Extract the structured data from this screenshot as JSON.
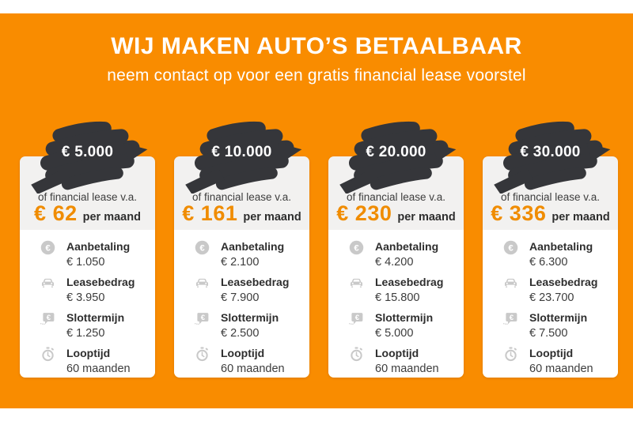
{
  "page": {
    "background_color": "#ffffff",
    "banner_color": "#f98c00",
    "brush_color": "#35363a",
    "accent_price_color": "#f08c00",
    "card_header_color": "#f2f1f0"
  },
  "header": {
    "title_regular": "WIJ MAKEN AUTO’S ",
    "title_bold": "BETAALBAAR",
    "subtitle": "neem contact op voor een gratis financial lease voorstel"
  },
  "labels": {
    "lease_intro": "of financial lease v.a.",
    "per_month": "per maand"
  },
  "cards": [
    {
      "amount": "€ 5.000",
      "monthly": "€ 62",
      "details": [
        {
          "icon": "euro-coin-icon",
          "label": "Aanbetaling",
          "value": "€ 1.050"
        },
        {
          "icon": "car-icon",
          "label": "Leasebedrag",
          "value": "€ 3.950"
        },
        {
          "icon": "euro-bubble-icon",
          "label": "Slottermijn",
          "value": "€ 1.250"
        },
        {
          "icon": "stopwatch-icon",
          "label": "Looptijd",
          "value": "60 maanden"
        }
      ]
    },
    {
      "amount": "€ 10.000",
      "monthly": "€ 161",
      "details": [
        {
          "icon": "euro-coin-icon",
          "label": "Aanbetaling",
          "value": "€ 2.100"
        },
        {
          "icon": "car-icon",
          "label": "Leasebedrag",
          "value": "€ 7.900"
        },
        {
          "icon": "euro-bubble-icon",
          "label": "Slottermijn",
          "value": "€ 2.500"
        },
        {
          "icon": "stopwatch-icon",
          "label": "Looptijd",
          "value": "60 maanden"
        }
      ]
    },
    {
      "amount": "€ 20.000",
      "monthly": "€ 230",
      "details": [
        {
          "icon": "euro-coin-icon",
          "label": "Aanbetaling",
          "value": "€ 4.200"
        },
        {
          "icon": "car-icon",
          "label": "Leasebedrag",
          "value": "€ 15.800"
        },
        {
          "icon": "euro-bubble-icon",
          "label": "Slottermijn",
          "value": "€ 5.000"
        },
        {
          "icon": "stopwatch-icon",
          "label": "Looptijd",
          "value": "60 maanden"
        }
      ]
    },
    {
      "amount": "€ 30.000",
      "monthly": "€ 336",
      "details": [
        {
          "icon": "euro-coin-icon",
          "label": "Aanbetaling",
          "value": "€ 6.300"
        },
        {
          "icon": "car-icon",
          "label": "Leasebedrag",
          "value": "€ 23.700"
        },
        {
          "icon": "euro-bubble-icon",
          "label": "Slottermijn",
          "value": "€ 7.500"
        },
        {
          "icon": "stopwatch-icon",
          "label": "Looptijd",
          "value": "60 maanden"
        }
      ]
    }
  ]
}
